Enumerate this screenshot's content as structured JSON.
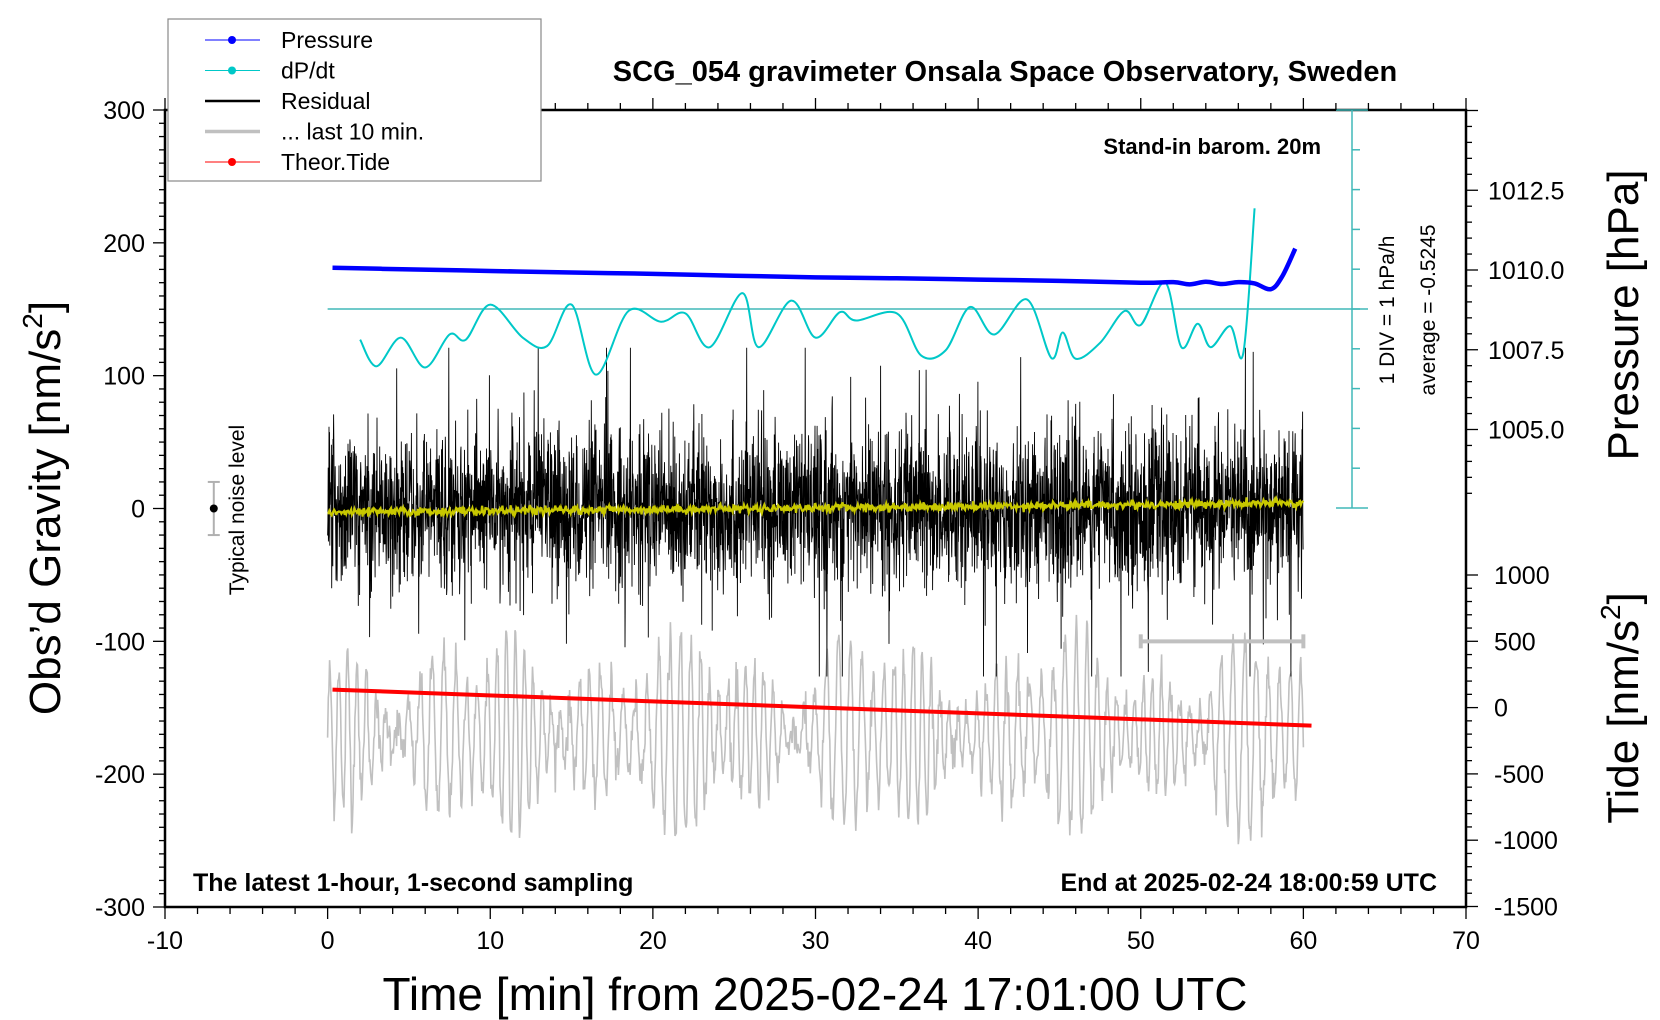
{
  "chart_data": {
    "type": "line",
    "title": "SCG_054 gravimeter Onsala Space Observatory, Sweden",
    "xlabel": "Time [min] from 2025-02-24 17:01:00 UTC",
    "ylabel_left_main": "Obs’d Gravity [nm/s",
    "ylabel_left_sup": "2",
    "ylabel_left_end": "]",
    "ylabel_right_pressure": "Pressure [hPa]",
    "ylabel_right_tide_main": "Tide [nm/s",
    "ylabel_right_tide_sup": "2",
    "ylabel_right_tide_end": "]",
    "xlim": [
      -10,
      70
    ],
    "ylim_gravity": [
      -300,
      300
    ],
    "x_ticks": [
      "-10",
      "0",
      "10",
      "20",
      "30",
      "40",
      "50",
      "60",
      "70"
    ],
    "y_ticks_gravity": [
      "300",
      "200",
      "100",
      "0",
      "-100",
      "-200",
      "-300"
    ],
    "y_ticks_pressure": [
      "1012.5",
      "1010.0",
      "1007.5",
      "1005.0"
    ],
    "y_ticks_tide": [
      "1000",
      "500",
      "0",
      "-500",
      "-1000",
      "-1500"
    ],
    "annotations": {
      "barometer": "Stand-in barom. 20m",
      "div_scale": "1 DIV = 1 hPa/h",
      "average": "average = -0.5245",
      "noise_level": "Typical noise level",
      "sampling": "The latest 1-hour, 1-second sampling",
      "end_time": "End at 2025-02-24 18:00:59 UTC"
    },
    "legend": {
      "position": "top-left",
      "entries": [
        {
          "label": "Pressure",
          "color": "#0000ff",
          "marker": "dot"
        },
        {
          "label": "dP/dt",
          "color": "#00c8c8",
          "marker": "dot"
        },
        {
          "label": "Residual",
          "color": "#000000",
          "marker": "line"
        },
        {
          "label": "... last 10 min.",
          "color": "#c0c0c0",
          "marker": "line"
        },
        {
          "label": "Theor.Tide",
          "color": "#ff0000",
          "marker": "dot"
        }
      ]
    },
    "series": [
      {
        "name": "Pressure",
        "unit": "hPa",
        "color": "#0000ff",
        "points": [
          [
            0.3,
            1010.07
          ],
          [
            5,
            1010.02
          ],
          [
            10,
            1009.97
          ],
          [
            15,
            1009.92
          ],
          [
            20,
            1009.88
          ],
          [
            25,
            1009.82
          ],
          [
            30,
            1009.77
          ],
          [
            35,
            1009.74
          ],
          [
            40,
            1009.7
          ],
          [
            45,
            1009.66
          ],
          [
            50,
            1009.6
          ],
          [
            52,
            1009.62
          ],
          [
            53,
            1009.55
          ],
          [
            54,
            1009.63
          ],
          [
            55,
            1009.56
          ],
          [
            56,
            1009.62
          ],
          [
            57,
            1009.58
          ],
          [
            58,
            1009.4
          ],
          [
            58.7,
            1009.8
          ],
          [
            59.5,
            1010.67
          ]
        ]
      },
      {
        "name": "dP/dt",
        "unit": "hPa/h",
        "color": "#00c8c8",
        "average": -0.5245,
        "points": [
          [
            2,
            -0.77
          ],
          [
            3,
            -1.44
          ],
          [
            4.5,
            -0.72
          ],
          [
            6,
            -1.47
          ],
          [
            7.5,
            -0.64
          ],
          [
            8.5,
            -0.77
          ],
          [
            10,
            0.11
          ],
          [
            12,
            -0.72
          ],
          [
            13.5,
            -0.93
          ],
          [
            15,
            0.11
          ],
          [
            16.5,
            -1.65
          ],
          [
            18.5,
            -0.05
          ],
          [
            20.5,
            -0.32
          ],
          [
            22,
            -0.11
          ],
          [
            23.5,
            -0.96
          ],
          [
            25.5,
            0.4
          ],
          [
            26.5,
            -0.96
          ],
          [
            28.5,
            0.21
          ],
          [
            30,
            -0.72
          ],
          [
            31.5,
            -0.08
          ],
          [
            32.5,
            -0.29
          ],
          [
            35,
            -0.11
          ],
          [
            36.5,
            -1.17
          ],
          [
            38,
            -1.04
          ],
          [
            39.5,
            0.05
          ],
          [
            41,
            -0.64
          ],
          [
            43,
            0.24
          ],
          [
            44.5,
            -1.23
          ],
          [
            45.2,
            -0.59
          ],
          [
            46,
            -1.25
          ],
          [
            47.5,
            -0.85
          ],
          [
            49,
            -0.05
          ],
          [
            50,
            -0.4
          ],
          [
            51.5,
            0.67
          ],
          [
            52.5,
            -0.96
          ],
          [
            53.5,
            -0.37
          ],
          [
            54.3,
            -0.96
          ],
          [
            55.5,
            -0.43
          ],
          [
            56.3,
            -1.12
          ],
          [
            57,
            2.53
          ]
        ]
      },
      {
        "name": "Residual",
        "unit": "nm/s2",
        "color": "#000000",
        "x_range": [
          0,
          60
        ],
        "typical_amplitude": 60,
        "peak_amplitude": 110
      },
      {
        "name": "Residual smoothed",
        "unit": "nm/s2",
        "color": "#c8c800",
        "points": [
          [
            0,
            -3
          ],
          [
            20,
            -1
          ],
          [
            40,
            1
          ],
          [
            60,
            4
          ]
        ]
      },
      {
        "name": "... last 10 min.",
        "unit": "nm/s2",
        "color": "#c0c0c0",
        "x_range": [
          0,
          60
        ],
        "center": -170,
        "amplitude": 80
      },
      {
        "name": "Theor.Tide",
        "unit": "nm/s2",
        "color": "#ff0000",
        "points": [
          [
            0.3,
            136
          ],
          [
            60.5,
            -136
          ]
        ]
      }
    ],
    "noise_level": {
      "x": -7,
      "center": 0,
      "half_range": 20
    },
    "last10_marker": {
      "x_range": [
        50,
        60
      ],
      "y": -100
    }
  }
}
